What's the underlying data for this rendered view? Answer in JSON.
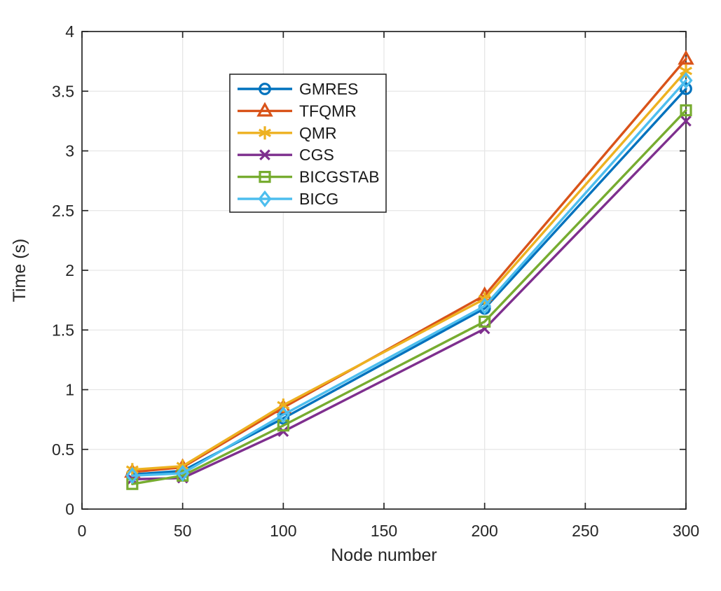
{
  "figure": {
    "background": "#ffffff"
  },
  "colors": {
    "axis": "#262626",
    "grid": "#e6e6e6",
    "tick_label": "#262626",
    "legend_border": "#2b2b2b",
    "legend_background": "#ffffff"
  },
  "chart_data": {
    "type": "line",
    "title": "",
    "xlabel": "Node number",
    "ylabel": "Time (s)",
    "xlim": [
      0,
      300
    ],
    "ylim": [
      0,
      4
    ],
    "xticks": [
      0,
      50,
      100,
      150,
      200,
      250,
      300
    ],
    "yticks": [
      0,
      0.5,
      1,
      1.5,
      2,
      2.5,
      3,
      3.5,
      4
    ],
    "grid": true,
    "legend": {
      "position": "upper-left-inside",
      "border": true
    },
    "x": [
      25,
      50,
      100,
      200,
      300
    ],
    "series": [
      {
        "name": "GMRES",
        "color": "#0072BD",
        "marker": "circle",
        "values": [
          0.29,
          0.32,
          0.76,
          1.68,
          3.52
        ]
      },
      {
        "name": "TFQMR",
        "color": "#D95319",
        "marker": "triangle-up",
        "values": [
          0.31,
          0.35,
          0.85,
          1.79,
          3.77
        ]
      },
      {
        "name": "QMR",
        "color": "#EDB120",
        "marker": "asterisk",
        "values": [
          0.33,
          0.36,
          0.87,
          1.76,
          3.67
        ]
      },
      {
        "name": "CGS",
        "color": "#7E2F8E",
        "marker": "x-cross",
        "values": [
          0.25,
          0.26,
          0.65,
          1.51,
          3.25
        ]
      },
      {
        "name": "BICGSTAB",
        "color": "#77AC30",
        "marker": "square",
        "values": [
          0.21,
          0.28,
          0.7,
          1.57,
          3.34
        ]
      },
      {
        "name": "BICG",
        "color": "#4DBEEE",
        "marker": "diamond",
        "values": [
          0.28,
          0.3,
          0.79,
          1.7,
          3.59
        ]
      }
    ]
  }
}
